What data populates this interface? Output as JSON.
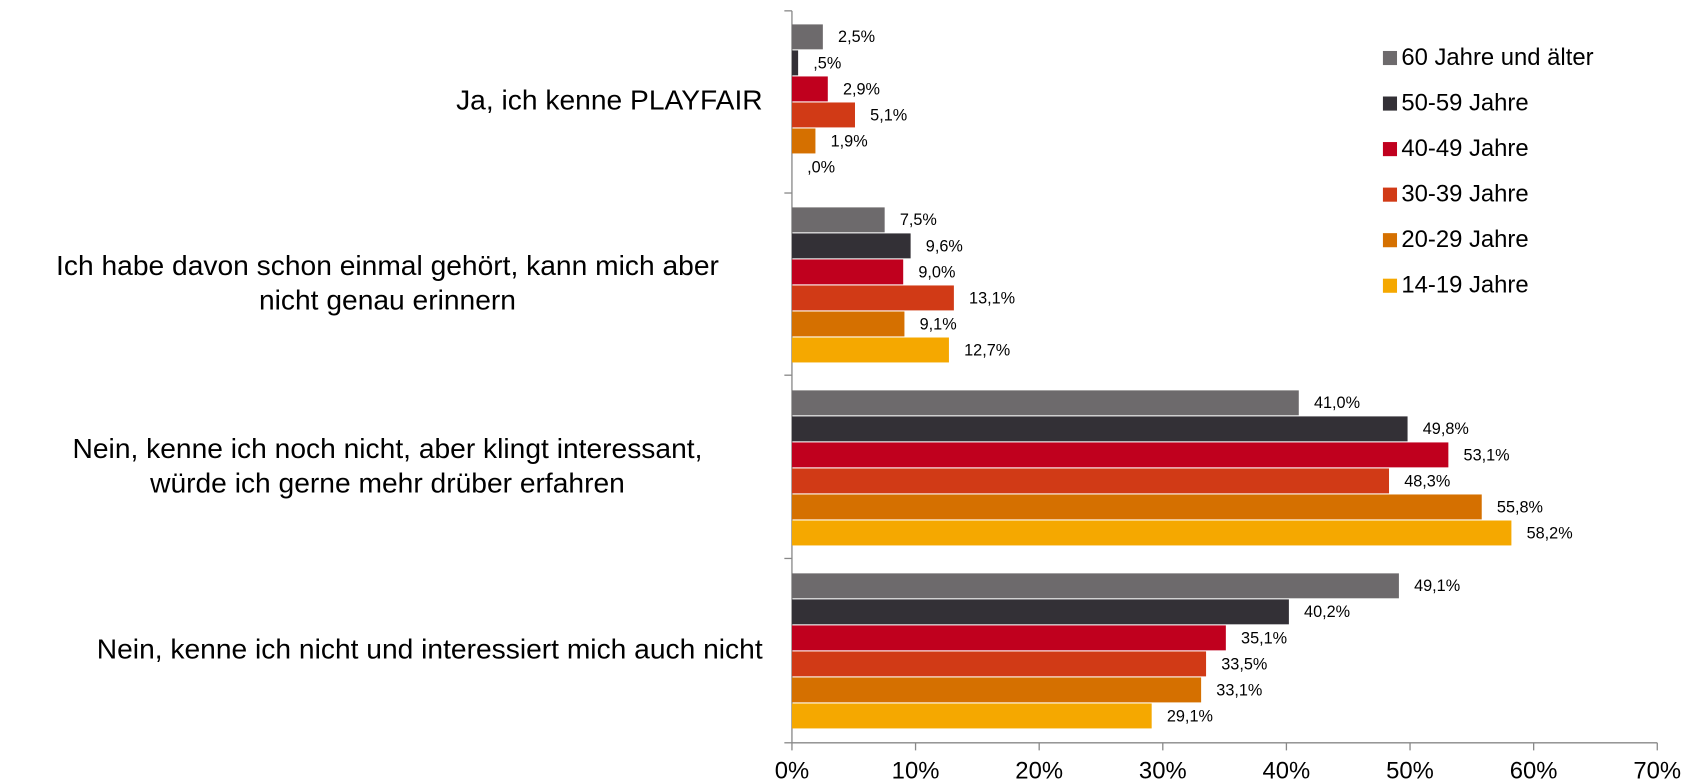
{
  "chart_data": {
    "type": "barh",
    "categories": [
      "Ja, ich kenne PLAYFAIR",
      "Ich habe davon schon einmal gehört, kann mich aber\nnicht genau erinnern",
      "Nein, kenne ich noch nicht, aber klingt interessant,\nwürde ich gerne mehr drüber erfahren",
      "Nein, kenne ich nicht und interessiert mich auch nicht"
    ],
    "series": [
      {
        "name": "60 Jahre und älter",
        "color": "#6d6a6c",
        "values": [
          2.5,
          7.5,
          41.0,
          49.1
        ],
        "value_labels": [
          "2,5%",
          "7,5%",
          "41,0%",
          "49,1%"
        ]
      },
      {
        "name": "50-59 Jahre",
        "color": "#333036",
        "values": [
          0.5,
          9.6,
          49.8,
          40.2
        ],
        "value_labels": [
          ",5%",
          "9,6%",
          "49,8%",
          "40,2%"
        ]
      },
      {
        "name": "40-49 Jahre",
        "color": "#c0001e",
        "values": [
          2.9,
          9.0,
          53.1,
          35.1
        ],
        "value_labels": [
          "2,9%",
          "9,0%",
          "53,1%",
          "35,1%"
        ]
      },
      {
        "name": "30-39 Jahre",
        "color": "#d13a16",
        "values": [
          5.1,
          13.1,
          48.3,
          33.5
        ],
        "value_labels": [
          "5,1%",
          "13,1%",
          "48,3%",
          "33,5%"
        ]
      },
      {
        "name": "20-29 Jahre",
        "color": "#d57000",
        "values": [
          1.9,
          9.1,
          55.8,
          33.1
        ],
        "value_labels": [
          "1,9%",
          "9,1%",
          "55,8%",
          "33,1%"
        ]
      },
      {
        "name": "14-19 Jahre",
        "color": "#f5a800",
        "values": [
          0,
          12.7,
          58.2,
          29.1
        ],
        "value_labels": [
          ",0%",
          "12,7%",
          "58,2%",
          "29,1%"
        ]
      }
    ],
    "xlim": [
      0,
      70
    ],
    "xticks": [
      {
        "value": 0,
        "label": "0%"
      },
      {
        "value": 10,
        "label": "10%"
      },
      {
        "value": 20,
        "label": "20%"
      },
      {
        "value": 30,
        "label": "30%"
      },
      {
        "value": 40,
        "label": "40%"
      },
      {
        "value": 50,
        "label": "50%"
      },
      {
        "value": 60,
        "label": "60%"
      },
      {
        "value": 70,
        "label": "70%"
      }
    ],
    "legend": "top-right"
  }
}
